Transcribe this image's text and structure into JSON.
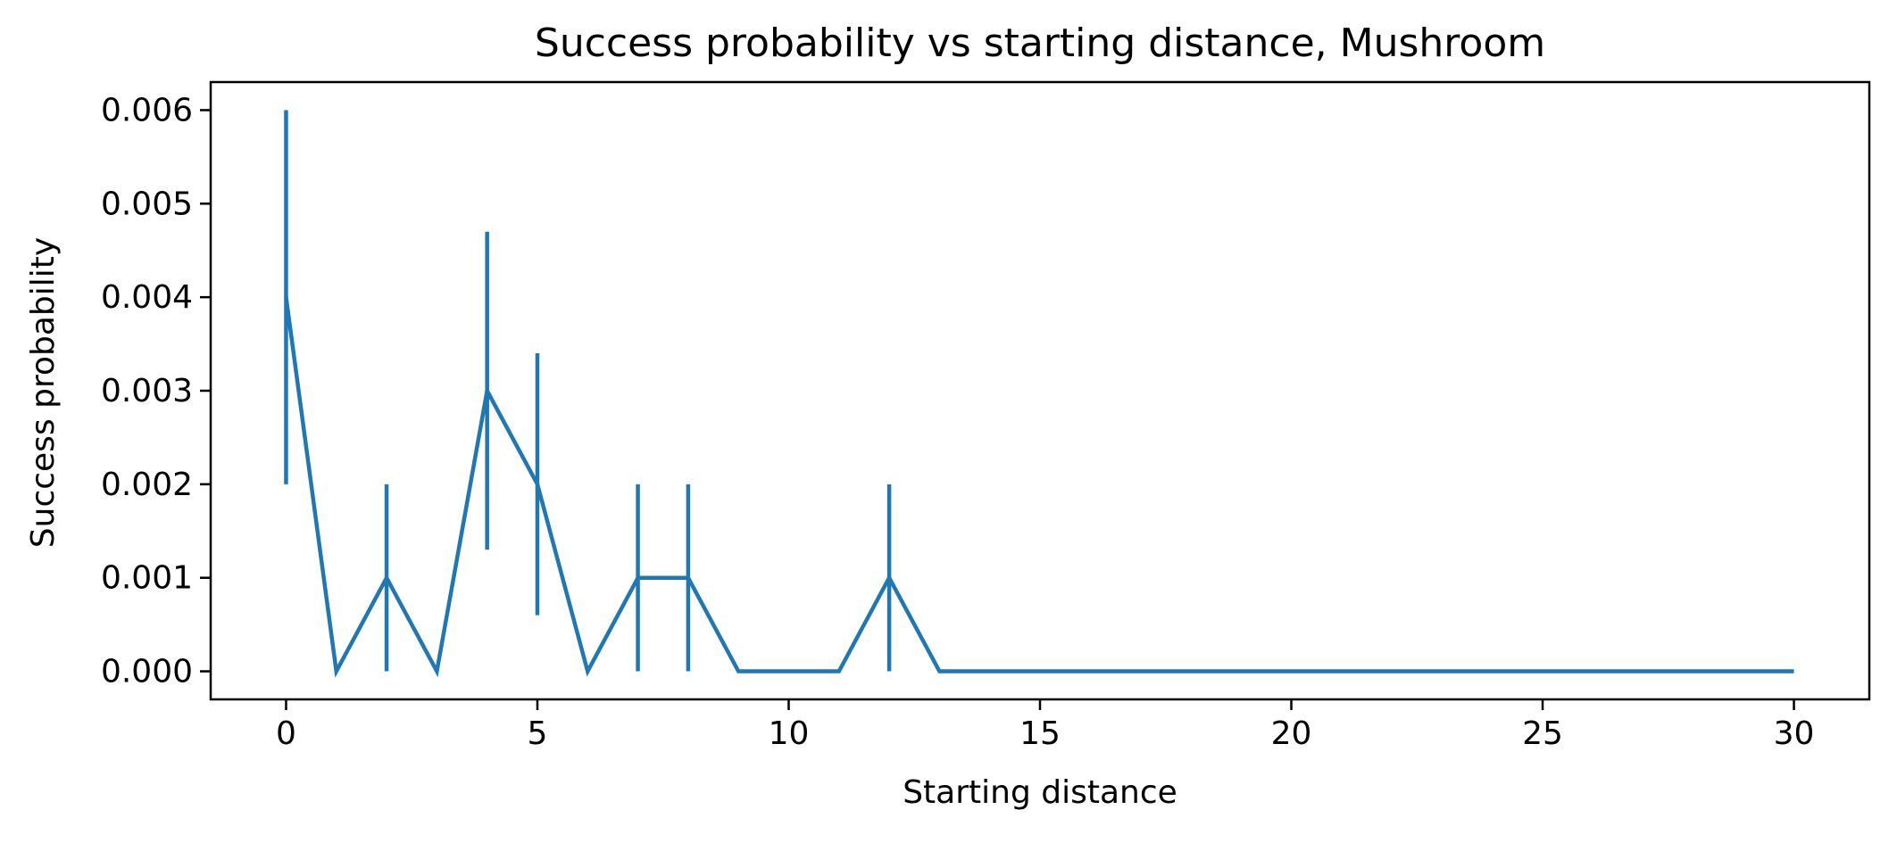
{
  "chart_data": {
    "type": "line",
    "title": "Success probability vs starting distance, Mushroom",
    "xlabel": "Starting distance",
    "ylabel": "Success probability",
    "xlim": [
      -1.5,
      31.5
    ],
    "ylim": [
      -0.0003,
      0.0063
    ],
    "xticks": [
      0,
      5,
      10,
      15,
      20,
      25,
      30
    ],
    "xtick_labels": [
      "0",
      "5",
      "10",
      "15",
      "20",
      "25",
      "30"
    ],
    "yticks": [
      0,
      0.001,
      0.002,
      0.003,
      0.004,
      0.005,
      0.006
    ],
    "ytick_labels": [
      "0.000",
      "0.001",
      "0.002",
      "0.003",
      "0.004",
      "0.005",
      "0.006"
    ],
    "grid": false,
    "legend": "none",
    "series": [
      {
        "color": "#1f77b4",
        "x": [
          0,
          1,
          2,
          3,
          4,
          5,
          6,
          7,
          8,
          9,
          10,
          11,
          12,
          13,
          14,
          15,
          16,
          17,
          18,
          19,
          20,
          21,
          22,
          23,
          24,
          25,
          26,
          27,
          28,
          29,
          30
        ],
        "y": [
          0.004,
          0,
          0.001,
          0,
          0.003,
          0.002,
          0,
          0.001,
          0.001,
          0,
          0,
          0,
          0.001,
          0,
          0,
          0,
          0,
          0,
          0,
          0,
          0,
          0,
          0,
          0,
          0,
          0,
          0,
          0,
          0,
          0,
          0
        ],
        "yerr": [
          0.002,
          0,
          0.001,
          0,
          0.0017,
          0.0014,
          0,
          0.001,
          0.001,
          0,
          0,
          0,
          0.001,
          0,
          0,
          0,
          0,
          0,
          0,
          0,
          0,
          0,
          0,
          0,
          0,
          0,
          0,
          0,
          0,
          0,
          0
        ]
      }
    ]
  }
}
